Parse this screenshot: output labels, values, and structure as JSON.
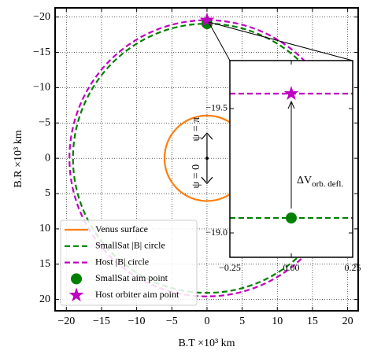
{
  "chart_data": [
    {
      "type": "circle",
      "xlabel": "B.T ×10³ km",
      "ylabel": "B.R ×10³ km",
      "xlim": [
        -21.6,
        21.5
      ],
      "ylim": [
        -21.3,
        21.6
      ],
      "y_inverted": true,
      "xticks": [
        {
          "value": -20,
          "label": "−20"
        },
        {
          "value": -15,
          "label": "−15"
        },
        {
          "value": -10,
          "label": "−10"
        },
        {
          "value": -5,
          "label": "−5"
        },
        0,
        5,
        10,
        15,
        20
      ],
      "yticks": [
        {
          "value": -20,
          "label": "−20"
        },
        {
          "value": -15,
          "label": "−15"
        },
        {
          "value": -10,
          "label": "−10"
        },
        {
          "value": -5,
          "label": "−5"
        },
        0,
        5,
        10,
        15,
        20
      ],
      "grid": true,
      "legend": "lower left",
      "annotations": [
        "ψ = π",
        "ψ = 0"
      ],
      "series": [
        {
          "name": "Venus surface",
          "color": "#ff7f0e",
          "dash": false,
          "values": [
            6.05
          ]
        },
        {
          "name": "SmallSat |B| circle",
          "color": "#008000",
          "dash": true,
          "values": [
            19.06
          ]
        },
        {
          "name": "Host |B| circle",
          "color": "#c000c0",
          "dash": true,
          "values": [
            19.56
          ]
        },
        {
          "name": "SmallSat aim point",
          "color": "#008000",
          "marker": "circle",
          "x": [
            0
          ],
          "values": [
            -19.06
          ]
        },
        {
          "name": "Host orbiter aim point",
          "color": "#c000c0",
          "marker": "star",
          "x": [
            0
          ],
          "values": [
            -19.56
          ]
        }
      ]
    },
    {
      "type": "line",
      "xlim": [
        -0.25,
        0.25
      ],
      "ylim": [
        -19.693,
        -18.902
      ],
      "y_inverted": true,
      "xticks": [
        {
          "value": -0.25,
          "label": "−0.25"
        },
        {
          "value": 0,
          "label": "0.00"
        },
        {
          "value": 0.25,
          "label": "0.25"
        }
      ],
      "yticks": [
        {
          "value": -19.5,
          "label": "−19.5"
        },
        {
          "value": -19.0,
          "label": "−19.0"
        }
      ],
      "annotation": "ΔV",
      "annotation_sub": "orb. defl.",
      "series": [
        {
          "color": "#008000",
          "dash": true,
          "x": [
            -0.25,
            0.25
          ],
          "values": [
            -19.06,
            -19.06
          ]
        },
        {
          "color": "#c000c0",
          "dash": true,
          "x": [
            -0.25,
            0.25
          ],
          "values": [
            -19.56,
            -19.56
          ]
        },
        {
          "color": "#008000",
          "marker": "circle",
          "x": [
            0
          ],
          "values": [
            -19.06
          ]
        },
        {
          "color": "#c000c0",
          "marker": "star",
          "x": [
            0
          ],
          "values": [
            -19.56
          ]
        }
      ]
    }
  ]
}
